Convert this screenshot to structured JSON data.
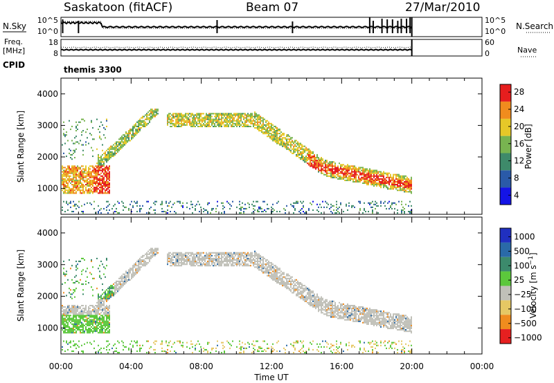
{
  "header": {
    "station": "Saskatoon (fitACF)",
    "beam": "Beam 07",
    "date": "27/Mar/2010"
  },
  "summary_panels": {
    "nsky": {
      "left_label": "N.Sky",
      "left_top_tick": "10^5",
      "left_bottom_tick": "10^0",
      "right_top_tick": "10^5",
      "right_bottom_tick": "10^0",
      "right_label": "N.Search"
    },
    "freq": {
      "left_label_1": "Freq.",
      "left_label_2": "[MHz]",
      "left_top_tick": "18",
      "left_bottom_tick": "8",
      "right_top_tick": "60",
      "right_bottom_tick": "0",
      "right_label": "Nave"
    },
    "cpid": {
      "label": "CPID",
      "mode": "themis 3300"
    }
  },
  "chart_data": [
    {
      "type": "heatmap",
      "name": "power",
      "ylabel": "Slant Range [km]",
      "yticks": [
        "1000",
        "2000",
        "3000",
        "4000"
      ],
      "ylim": [
        180,
        4500
      ],
      "colorbar_label": "Power [dB]",
      "colorbar_ticks": [
        "4",
        "8",
        "12",
        "16",
        "20",
        "24",
        "28"
      ],
      "colorbar_range": [
        0,
        30
      ],
      "colors": [
        "#1414e6",
        "#2a5aa8",
        "#3e8a6a",
        "#78b450",
        "#e6c828",
        "#f08c1e",
        "#e61e1e"
      ],
      "data_end_time": "20:00"
    },
    {
      "type": "heatmap",
      "name": "velocity",
      "ylabel": "Slant Range [km]",
      "yticks": [
        "1000",
        "2000",
        "3000",
        "4000"
      ],
      "ylim": [
        180,
        4500
      ],
      "colorbar_label": "Velocity [m s^-1]",
      "colorbar_ticks": [
        "1000",
        "500",
        "100",
        "25",
        "−25",
        "−100",
        "−500",
        "−1000"
      ],
      "colors": [
        "#2030c0",
        "#2a6aa8",
        "#3c8a6c",
        "#5cc83c",
        "#c0c0b8",
        "#e6c864",
        "#f08c1e",
        "#e62020"
      ],
      "data_end_time": "20:00"
    }
  ],
  "time_axis": {
    "label": "Time UT",
    "ticks": [
      "00:00",
      "04:00",
      "08:00",
      "12:00",
      "16:00",
      "20:00",
      "00:00"
    ]
  }
}
